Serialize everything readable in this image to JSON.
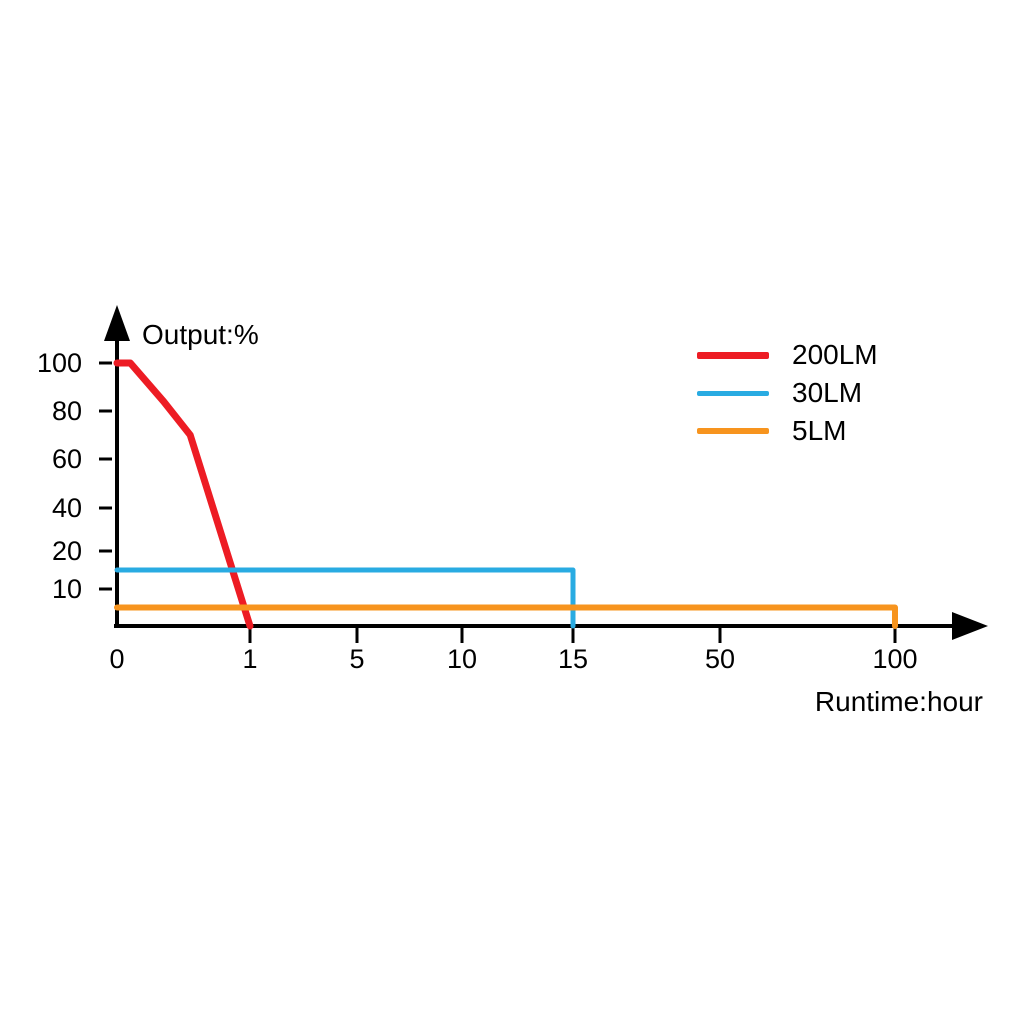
{
  "chart_data": {
    "type": "line",
    "title": "",
    "y_axis_title": "Output:%",
    "x_axis_title": "Runtime:hour",
    "x_axis": {
      "tick_values": [
        0,
        1,
        5,
        10,
        15,
        50,
        100
      ],
      "unit": "hour",
      "scale": "piecewise non-linear"
    },
    "y_axis": {
      "tick_values": [
        10,
        20,
        40,
        60,
        80,
        100
      ],
      "unit": "%",
      "range": [
        0,
        100
      ]
    },
    "series": [
      {
        "name": "200LM",
        "color": "#ed1c24",
        "line_width": 7,
        "points": [
          [
            0,
            100
          ],
          [
            0.1,
            100
          ],
          [
            0.35,
            84
          ],
          [
            0.55,
            70
          ],
          [
            1,
            0
          ]
        ]
      },
      {
        "name": "30LM",
        "color": "#29abe2",
        "line_width": 5,
        "points": [
          [
            0,
            15
          ],
          [
            15,
            15
          ],
          [
            15,
            0
          ]
        ]
      },
      {
        "name": "5LM",
        "color": "#f7941e",
        "line_width": 6,
        "points": [
          [
            0,
            5
          ],
          [
            100,
            5
          ],
          [
            100,
            0
          ]
        ]
      }
    ],
    "legend_position": "top-right",
    "grid": false,
    "axis_color": "#000000",
    "background": "#ffffff"
  }
}
